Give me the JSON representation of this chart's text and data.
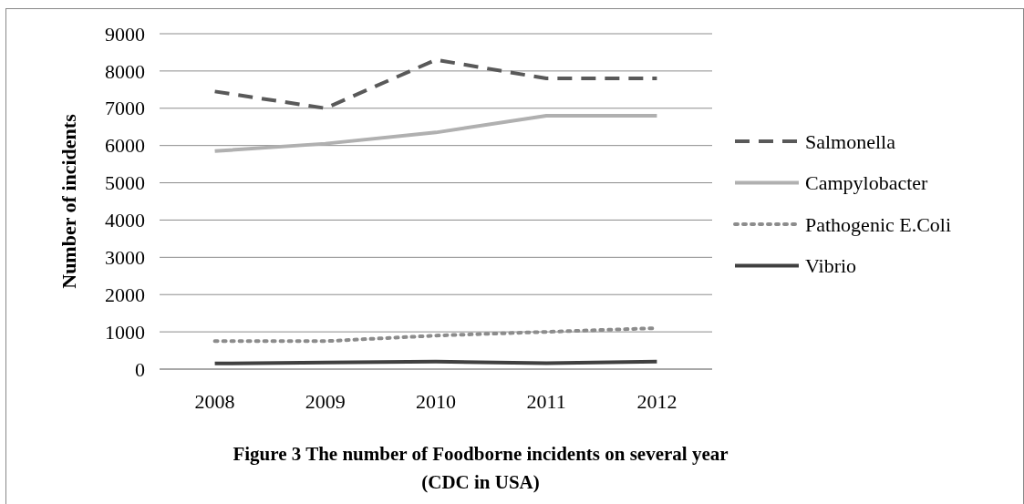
{
  "chart_data": {
    "type": "line",
    "title": "Figure 3  The number of Foodborne incidents on several year",
    "subtitle": "(CDC in USA)",
    "ylabel": "Number of incidents",
    "categories": [
      "2008",
      "2009",
      "2010",
      "2011",
      "2012"
    ],
    "series": [
      {
        "name": "Salmonella",
        "color": "#595959",
        "line_style": "dashed",
        "values": [
          7450,
          7000,
          8300,
          7800,
          7800
        ]
      },
      {
        "name": "Campylobacter",
        "color": "#b0b0b0",
        "line_style": "solid",
        "values": [
          5850,
          6050,
          6350,
          6800,
          6800
        ]
      },
      {
        "name": "Pathogenic E.Coli",
        "color": "#8c8c8c",
        "line_style": "dotted",
        "values": [
          750,
          750,
          900,
          1000,
          1100
        ]
      },
      {
        "name": "Vibrio",
        "color": "#404040",
        "line_style": "solid",
        "values": [
          150,
          180,
          200,
          160,
          200
        ]
      }
    ],
    "ylim": [
      0,
      9000
    ],
    "yticks": [
      0,
      1000,
      2000,
      3000,
      4000,
      5000,
      6000,
      7000,
      8000,
      9000
    ],
    "grid": "y",
    "legend": "right",
    "marker": "none"
  }
}
